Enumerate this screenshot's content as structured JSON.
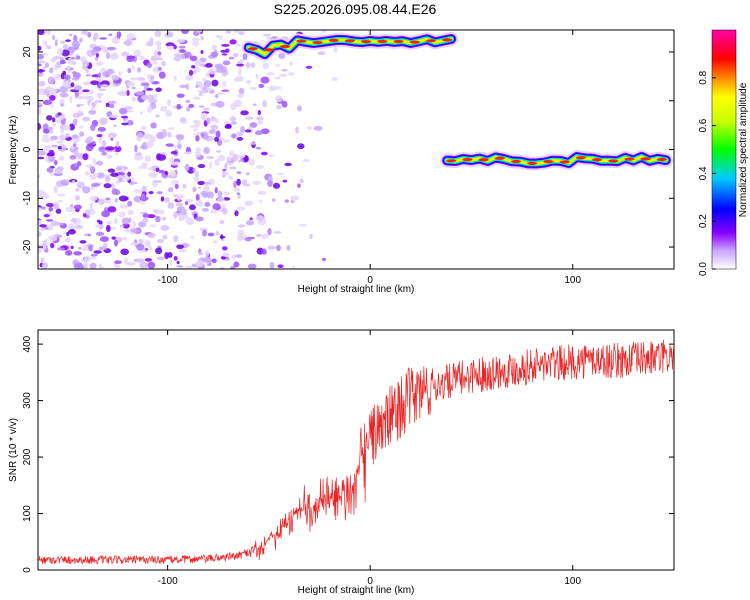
{
  "title": "S225.2026.095.08.44.E26",
  "chart_data": [
    {
      "type": "heatmap",
      "xlabel": "Height of straight line (km)",
      "ylabel": "Frequency (Hz)",
      "xlim": [
        -164,
        150
      ],
      "ylim": [
        -24.5,
        24.5
      ],
      "xticks": [
        -100,
        0,
        100
      ],
      "yticks": [
        -20,
        -10,
        0,
        10,
        20
      ],
      "colorbar": {
        "label": "Normalized spectral amplitude",
        "ticks": [
          "0.0",
          "0.2",
          "0.4",
          "0.6",
          "0.8"
        ],
        "range": [
          0,
          1
        ],
        "colors": [
          "#ffffff",
          "#8a00ff",
          "#0000ff",
          "#00ccff",
          "#00ff00",
          "#ffff00",
          "#ff8800",
          "#ff0000",
          "#ff00aa"
        ]
      },
      "ridges": [
        {
          "name": "upper ridge",
          "x": [
            -60,
            40
          ],
          "frequency_hz": [
            22.5,
            22.0
          ],
          "amplitude": 0.95
        },
        {
          "name": "lower ridge",
          "x": [
            38,
            148
          ],
          "frequency_hz": -2.0,
          "amplitude": 0.9
        }
      ],
      "noise_region_x": [
        -164,
        -50
      ]
    },
    {
      "type": "line",
      "xlabel": "Height of straight line (km)",
      "ylabel": "SNR (10 * v/v)",
      "xlim": [
        -164,
        150
      ],
      "ylim": [
        0,
        425
      ],
      "xticks": [
        -100,
        0,
        100
      ],
      "yticks": [
        0,
        100,
        200,
        300,
        400
      ],
      "color": "#ee2222",
      "series": [
        {
          "name": "SNR",
          "x": [
            -164,
            -140,
            -120,
            -100,
            -80,
            -65,
            -55,
            -45,
            -35,
            -25,
            -18,
            -12,
            -6,
            0,
            5,
            12,
            20,
            30,
            40,
            50,
            60,
            70,
            80,
            90,
            100,
            110,
            120,
            130,
            140,
            150
          ],
          "values": [
            18,
            18,
            18,
            18,
            20,
            25,
            40,
            70,
            105,
            115,
            120,
            130,
            170,
            235,
            250,
            280,
            305,
            325,
            335,
            345,
            350,
            355,
            362,
            365,
            368,
            372,
            370,
            373,
            375,
            378
          ]
        }
      ]
    }
  ]
}
